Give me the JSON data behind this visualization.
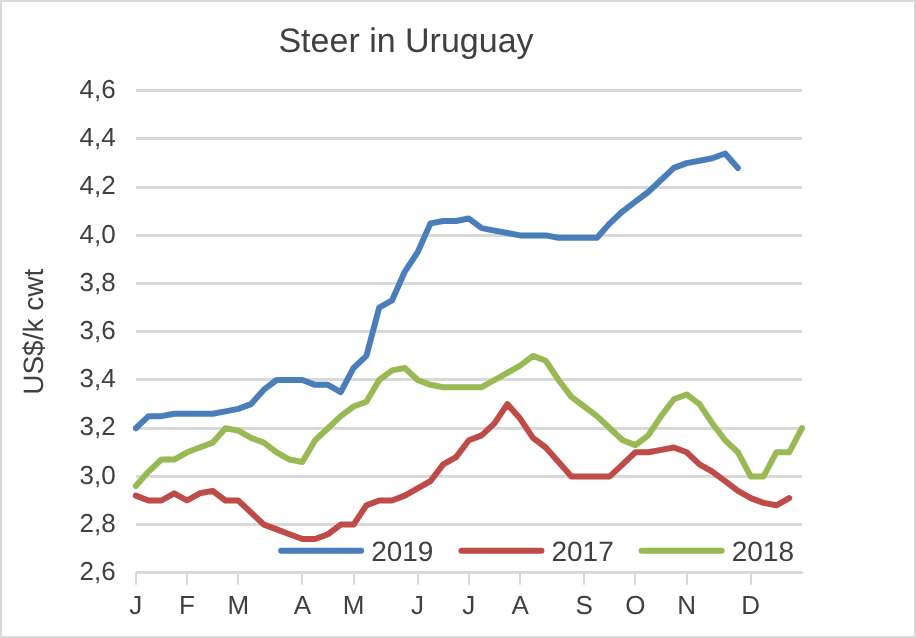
{
  "chart_data": {
    "type": "line",
    "title": "Steer in Uruguay",
    "ylabel": "US$/k cwt",
    "categories": [
      "J",
      null,
      null,
      null,
      "F",
      null,
      null,
      null,
      "M",
      null,
      null,
      null,
      null,
      "A",
      null,
      null,
      null,
      "M",
      null,
      null,
      null,
      null,
      "J",
      null,
      null,
      null,
      "J",
      null,
      null,
      null,
      "A",
      null,
      null,
      null,
      null,
      "S",
      null,
      null,
      null,
      "O",
      null,
      null,
      null,
      "N",
      null,
      null,
      null,
      null,
      "D",
      null,
      null,
      null,
      null
    ],
    "ylim": [
      2.6,
      4.6
    ],
    "yticks": [
      {
        "value": 2.6,
        "label": "2,6"
      },
      {
        "value": 2.8,
        "label": "2,8"
      },
      {
        "value": 3.0,
        "label": "3,0"
      },
      {
        "value": 3.2,
        "label": "3,2"
      },
      {
        "value": 3.4,
        "label": "3,4"
      },
      {
        "value": 3.6,
        "label": "3,6"
      },
      {
        "value": 3.8,
        "label": "3,8"
      },
      {
        "value": 4.0,
        "label": "4,0"
      },
      {
        "value": 4.2,
        "label": "4,2"
      },
      {
        "value": 4.4,
        "label": "4,4"
      },
      {
        "value": 4.6,
        "label": "4,6"
      }
    ],
    "grid": "y",
    "legend": "bottom right",
    "marker": "none",
    "line_style": "solid",
    "series": [
      {
        "name": "2019",
        "color": "#4a7ebb",
        "values": [
          3.2,
          3.25,
          3.25,
          3.26,
          3.26,
          3.26,
          3.26,
          3.27,
          3.28,
          3.3,
          3.36,
          3.4,
          3.4,
          3.4,
          3.38,
          3.38,
          3.35,
          3.45,
          3.5,
          3.7,
          3.73,
          3.85,
          3.93,
          4.05,
          4.06,
          4.06,
          4.07,
          4.03,
          4.02,
          4.01,
          4.0,
          4.0,
          4.0,
          3.99,
          3.99,
          3.99,
          3.99,
          4.05,
          4.1,
          4.14,
          4.18,
          4.23,
          4.28,
          4.3,
          4.31,
          4.32,
          4.34,
          4.28,
          null,
          null,
          null,
          null,
          null
        ]
      },
      {
        "name": "2017",
        "color": "#be4b48",
        "values": [
          2.92,
          2.9,
          2.9,
          2.93,
          2.9,
          2.93,
          2.94,
          2.9,
          2.9,
          2.85,
          2.8,
          2.78,
          2.76,
          2.74,
          2.74,
          2.76,
          2.8,
          2.8,
          2.88,
          2.9,
          2.9,
          2.92,
          2.95,
          2.98,
          3.05,
          3.08,
          3.15,
          3.17,
          3.22,
          3.3,
          3.24,
          3.16,
          3.12,
          3.06,
          3.0,
          3.0,
          3.0,
          3.0,
          3.05,
          3.1,
          3.1,
          3.11,
          3.12,
          3.1,
          3.05,
          3.02,
          2.98,
          2.94,
          2.91,
          2.89,
          2.88,
          2.91,
          null
        ]
      },
      {
        "name": "2018",
        "color": "#98b954",
        "values": [
          2.96,
          3.02,
          3.07,
          3.07,
          3.1,
          3.12,
          3.14,
          3.2,
          3.19,
          3.16,
          3.14,
          3.1,
          3.07,
          3.06,
          3.15,
          3.2,
          3.25,
          3.29,
          3.31,
          3.4,
          3.44,
          3.45,
          3.4,
          3.38,
          3.37,
          3.37,
          3.37,
          3.37,
          3.4,
          3.43,
          3.46,
          3.5,
          3.48,
          3.4,
          3.33,
          3.29,
          3.25,
          3.2,
          3.15,
          3.13,
          3.17,
          3.25,
          3.32,
          3.34,
          3.3,
          3.22,
          3.15,
          3.1,
          3.0,
          3.0,
          3.1,
          3.1,
          3.2
        ]
      }
    ]
  }
}
